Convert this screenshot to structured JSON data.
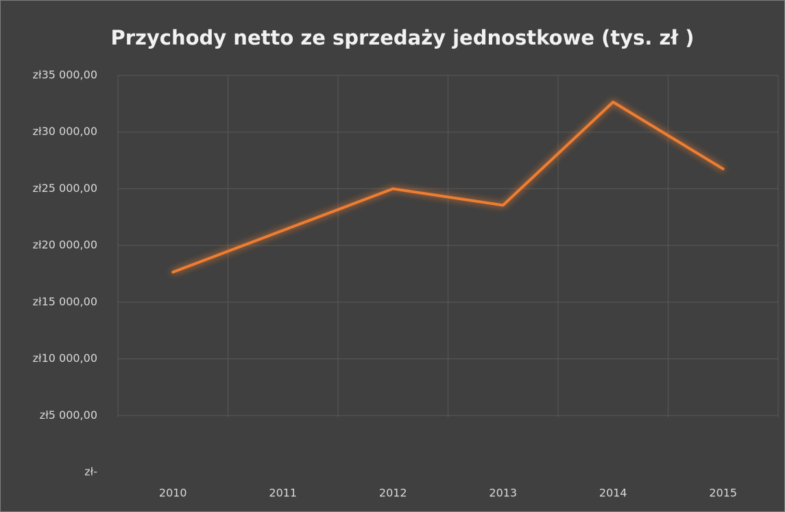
{
  "chart_data": {
    "type": "line",
    "title": "Przychody netto ze sprzedaży jednostkowe (tys. zł )",
    "categories": [
      "2010",
      "2011",
      "2012",
      "2013",
      "2014",
      "2015"
    ],
    "series": [
      {
        "name": "Przychody netto",
        "color": "#ed7d31",
        "values": [
          17650,
          21330,
          25000,
          23550,
          32650,
          26750
        ]
      }
    ],
    "ylim": [
      0,
      35000
    ],
    "yticks": [
      {
        "value": 0,
        "label": "zł-"
      },
      {
        "value": 5000,
        "label": "zł5 000,00"
      },
      {
        "value": 10000,
        "label": "zł10 000,00"
      },
      {
        "value": 15000,
        "label": "zł15 000,00"
      },
      {
        "value": 20000,
        "label": "zł20 000,00"
      },
      {
        "value": 25000,
        "label": "zł25 000,00"
      },
      {
        "value": 30000,
        "label": "zł30 000,00"
      },
      {
        "value": 35000,
        "label": "zł35 000,00"
      }
    ],
    "grid": true
  }
}
